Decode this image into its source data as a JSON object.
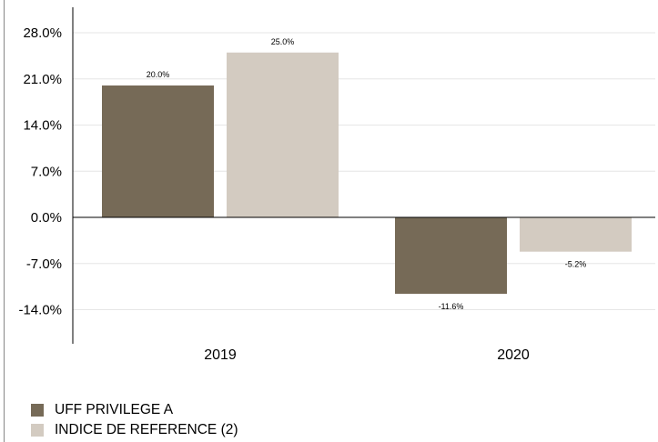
{
  "chart_data": {
    "type": "bar",
    "categories": [
      "2019",
      "2020"
    ],
    "series": [
      {
        "name": "UFF PRIVILEGE A",
        "color": "#766a57",
        "values": [
          20.0,
          -11.6
        ],
        "labels": [
          "20.0%",
          "-11.6%"
        ]
      },
      {
        "name": "INDICE DE REFERENCE (2)",
        "color": "#d3cbc1",
        "values": [
          25.0,
          -5.2
        ],
        "labels": [
          "25.0%",
          "-5.2%"
        ]
      }
    ],
    "yticks": [
      28.0,
      21.0,
      14.0,
      7.0,
      0.0,
      -7.0,
      -14.0
    ],
    "ytick_labels": [
      "28.0%",
      "21.0%",
      "14.0%",
      "7.0%",
      "0.0%",
      "-7.0%",
      "-14.0%"
    ],
    "ylim": [
      -19.0,
      32.0
    ],
    "grid": true,
    "legend_position": "bottom-left",
    "title": "",
    "xlabel": "",
    "ylabel": ""
  }
}
